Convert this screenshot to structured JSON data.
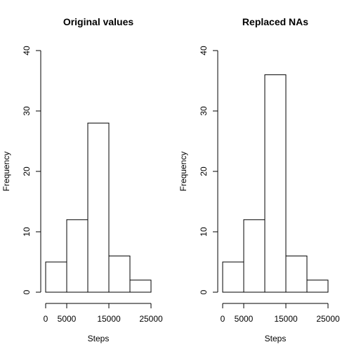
{
  "chart_data": [
    {
      "type": "bar",
      "title": "Original values",
      "xlabel": "Steps",
      "ylabel": "Frequency",
      "bins": [
        [
          0,
          5000
        ],
        [
          5000,
          10000
        ],
        [
          10000,
          15000
        ],
        [
          15000,
          20000
        ],
        [
          20000,
          25000
        ]
      ],
      "values": [
        5,
        12,
        28,
        6,
        2
      ],
      "xlim": [
        0,
        25000
      ],
      "ylim": [
        0,
        40
      ],
      "xticks": [
        0,
        5000,
        15000,
        25000
      ],
      "xtick_labels": [
        "0",
        "5000",
        "15000",
        "25000"
      ],
      "yticks": [
        0,
        10,
        20,
        30,
        40
      ],
      "ytick_labels": [
        "0",
        "10",
        "20",
        "30",
        "40"
      ],
      "grid": false
    },
    {
      "type": "bar",
      "title": "Replaced NAs",
      "xlabel": "Steps",
      "ylabel": "Frequency",
      "bins": [
        [
          0,
          5000
        ],
        [
          5000,
          10000
        ],
        [
          10000,
          15000
        ],
        [
          15000,
          20000
        ],
        [
          20000,
          25000
        ]
      ],
      "values": [
        5,
        12,
        36,
        6,
        2
      ],
      "xlim": [
        0,
        25000
      ],
      "ylim": [
        0,
        40
      ],
      "xticks": [
        0,
        5000,
        15000,
        25000
      ],
      "xtick_labels": [
        "0",
        "5000",
        "15000",
        "25000"
      ],
      "yticks": [
        0,
        10,
        20,
        30,
        40
      ],
      "ytick_labels": [
        "0",
        "10",
        "20",
        "30",
        "40"
      ],
      "grid": false
    }
  ]
}
